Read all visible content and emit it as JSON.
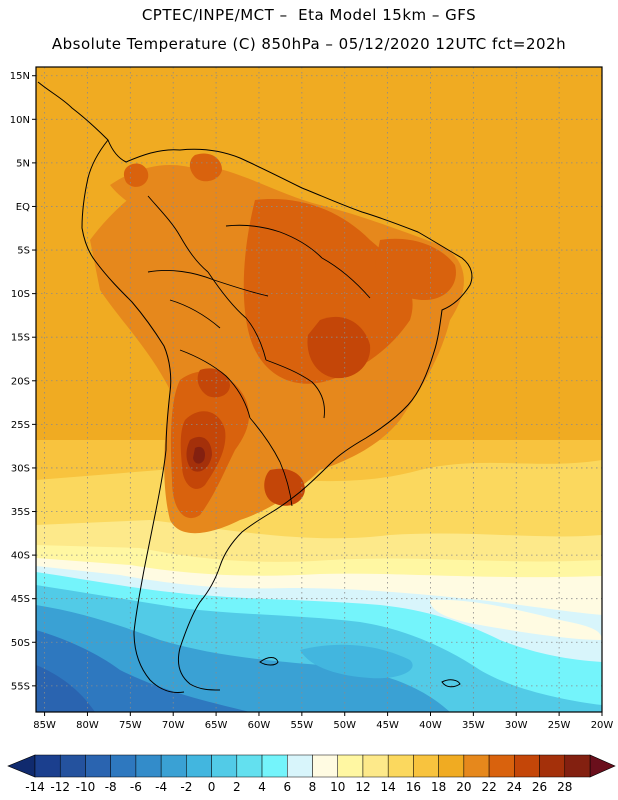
{
  "title": {
    "line1": "CPTEC/INPE/MCT –  Eta Model 15km – GFS",
    "line2": "Absolute Temperature (C) 850hPa – 05/12/2020 12UTC fct=202h"
  },
  "map": {
    "lon_min": -86,
    "lon_max": -20,
    "lat_min": -58,
    "lat_max": 16,
    "lat_ticks": [
      {
        "value": 15,
        "label": "15N"
      },
      {
        "value": 10,
        "label": "10N"
      },
      {
        "value": 5,
        "label": "5N"
      },
      {
        "value": 0,
        "label": "EQ"
      },
      {
        "value": -5,
        "label": "5S"
      },
      {
        "value": -10,
        "label": "10S"
      },
      {
        "value": -15,
        "label": "15S"
      },
      {
        "value": -20,
        "label": "20S"
      },
      {
        "value": -25,
        "label": "25S"
      },
      {
        "value": -30,
        "label": "30S"
      },
      {
        "value": -35,
        "label": "35S"
      },
      {
        "value": -40,
        "label": "40S"
      },
      {
        "value": -45,
        "label": "45S"
      },
      {
        "value": -50,
        "label": "50S"
      },
      {
        "value": -55,
        "label": "55S"
      }
    ],
    "lon_ticks": [
      {
        "value": -85,
        "label": "85W"
      },
      {
        "value": -80,
        "label": "80W"
      },
      {
        "value": -75,
        "label": "75W"
      },
      {
        "value": -70,
        "label": "70W"
      },
      {
        "value": -65,
        "label": "65W"
      },
      {
        "value": -60,
        "label": "60W"
      },
      {
        "value": -55,
        "label": "55W"
      },
      {
        "value": -50,
        "label": "50W"
      },
      {
        "value": -45,
        "label": "45W"
      },
      {
        "value": -40,
        "label": "40W"
      },
      {
        "value": -35,
        "label": "35W"
      },
      {
        "value": -30,
        "label": "30W"
      },
      {
        "value": -25,
        "label": "25W"
      },
      {
        "value": -20,
        "label": "20W"
      }
    ]
  },
  "colorbar": {
    "labels": [
      "-14",
      "-12",
      "-10",
      "-8",
      "-6",
      "-4",
      "-2",
      "0",
      "2",
      "4",
      "6",
      "8",
      "10",
      "12",
      "14",
      "16",
      "18",
      "20",
      "22",
      "24",
      "26",
      "28"
    ],
    "colors": [
      "#1b3f8e",
      "#24529e",
      "#2a64b0",
      "#2e78bf",
      "#338cca",
      "#3aa1d4",
      "#42b6df",
      "#52cbe7",
      "#63e0ef",
      "#74f4fb",
      "#d8f5fb",
      "#fffbe2",
      "#fff7a2",
      "#fde98a",
      "#fbd85e",
      "#f8c33e",
      "#f0ab22",
      "#e6881c",
      "#d9620d",
      "#c44608",
      "#a4300a",
      "#832010"
    ],
    "under_color": "#102a6e",
    "over_color": "#6a0f1c"
  }
}
